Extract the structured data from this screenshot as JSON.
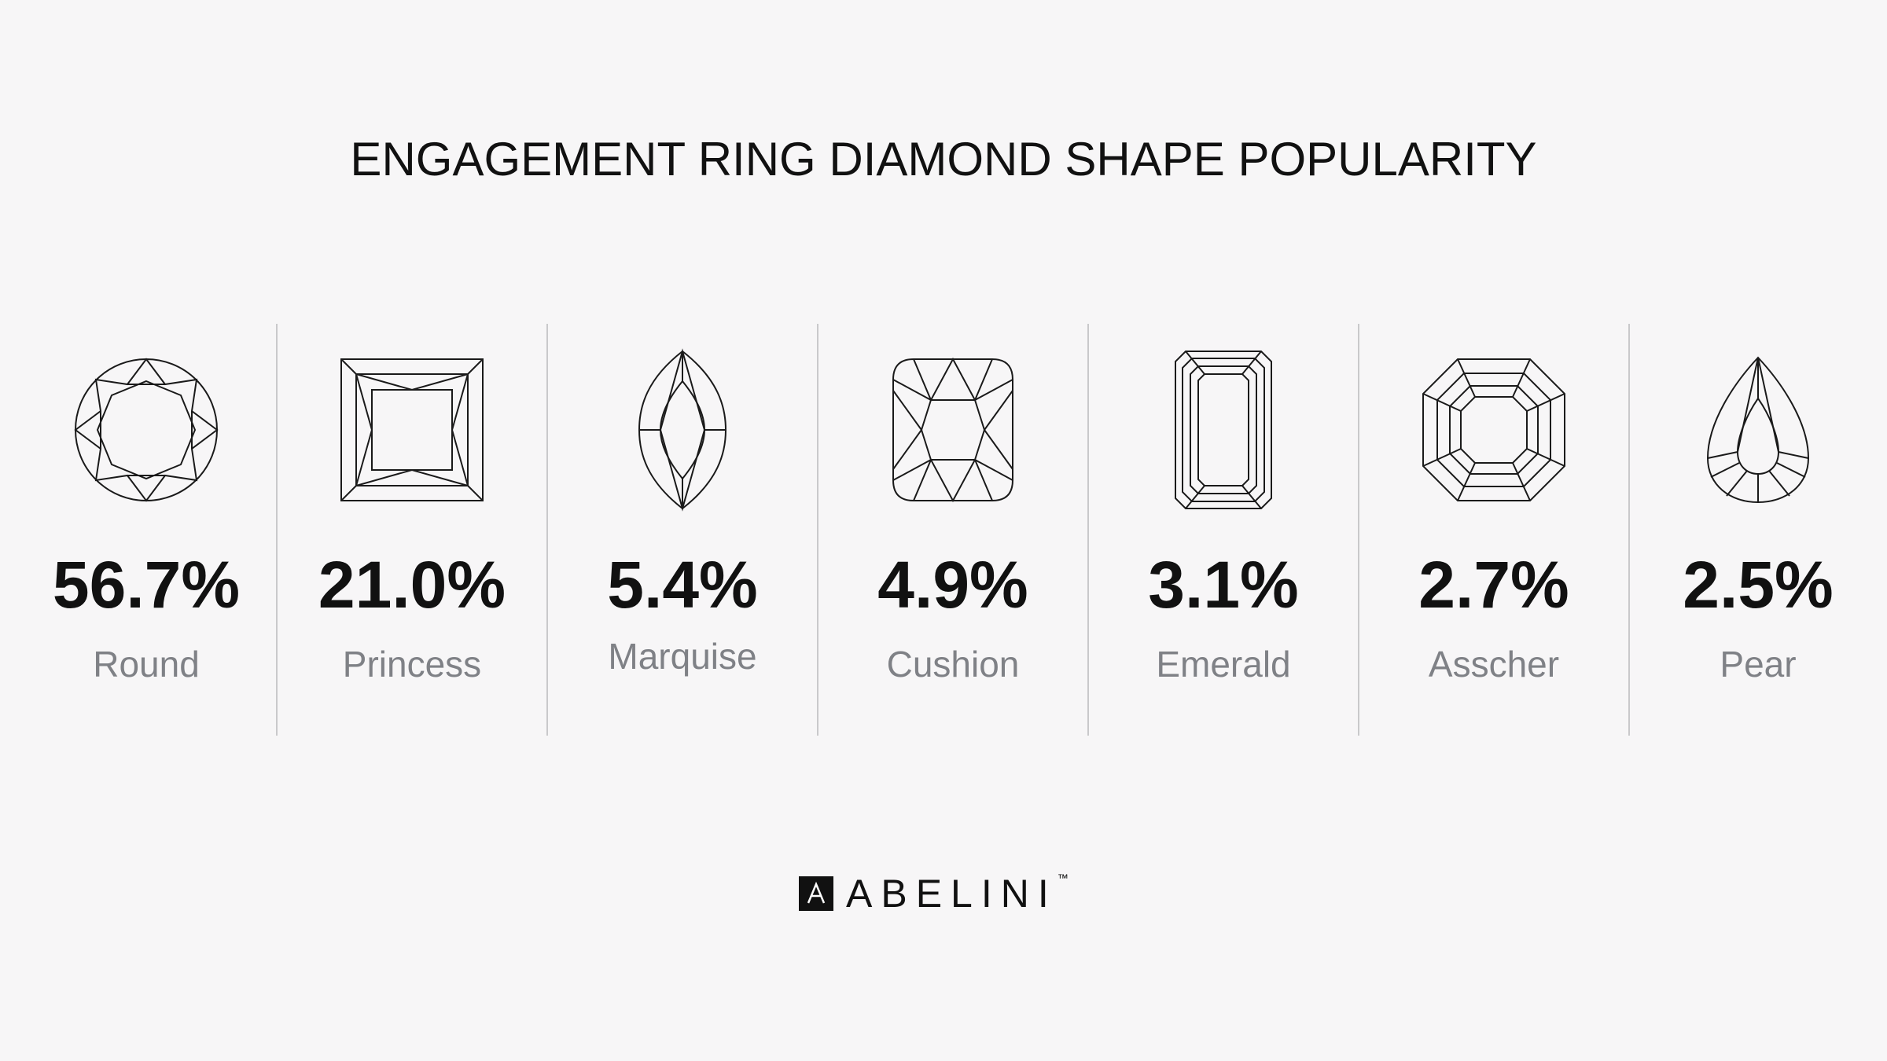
{
  "title": "ENGAGEMENT RING DIAMOND SHAPE POPULARITY",
  "shapes": [
    {
      "name": "Round",
      "percent": "56.7%",
      "icon": "round-diamond-icon"
    },
    {
      "name": "Princess",
      "percent": "21.0%",
      "icon": "princess-diamond-icon"
    },
    {
      "name": "Marquise",
      "percent": "5.4%",
      "icon": "marquise-diamond-icon"
    },
    {
      "name": "Cushion",
      "percent": "4.9%",
      "icon": "cushion-diamond-icon"
    },
    {
      "name": "Emerald",
      "percent": "3.1%",
      "icon": "emerald-diamond-icon"
    },
    {
      "name": "Asscher",
      "percent": "2.7%",
      "icon": "asscher-diamond-icon"
    },
    {
      "name": "Pear",
      "percent": "2.5%",
      "icon": "pear-diamond-icon"
    }
  ],
  "logo": {
    "text": "ABELINI",
    "trademark": "™"
  },
  "colors": {
    "background": "#f7f6f7",
    "text": "#111111",
    "label": "#7f8186",
    "divider": "#c9c9cb"
  }
}
